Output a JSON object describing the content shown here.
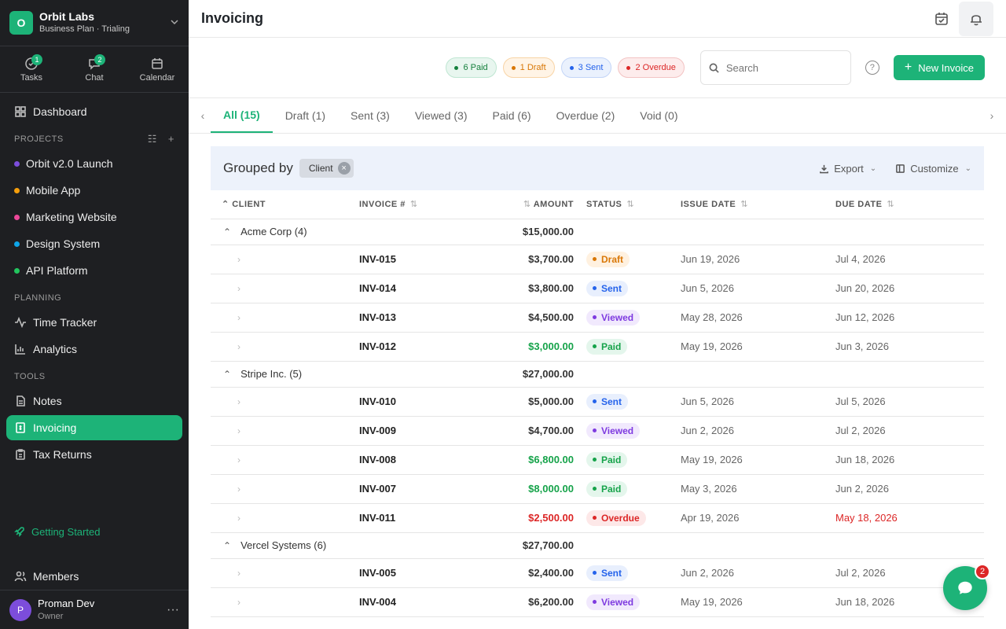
{
  "org": {
    "initial": "O",
    "name": "Orbit Labs",
    "plan": "Business Plan · Trialing"
  },
  "quick": [
    {
      "label": "Tasks",
      "badge": "1"
    },
    {
      "label": "Chat",
      "badge": "2"
    },
    {
      "label": "Calendar"
    }
  ],
  "nav": {
    "dashboard": "Dashboard",
    "projects_label": "PROJECTS",
    "projects": [
      {
        "label": "Orbit v2.0 Launch",
        "color": "#7c4ddb"
      },
      {
        "label": "Mobile App",
        "color": "#f59e0b"
      },
      {
        "label": "Marketing Website",
        "color": "#ec4899"
      },
      {
        "label": "Design System",
        "color": "#0ea5e9"
      },
      {
        "label": "API Platform",
        "color": "#22c55e"
      }
    ],
    "planning_label": "PLANNING",
    "time_tracker": "Time Tracker",
    "analytics": "Analytics",
    "tools_label": "TOOLS",
    "notes": "Notes",
    "invoicing": "Invoicing",
    "tax_returns": "Tax Returns",
    "getting_started": "Getting Started",
    "members": "Members"
  },
  "user": {
    "initial": "P",
    "name": "Proman Dev",
    "role": "Owner",
    "more": "···"
  },
  "header": {
    "title": "Invoicing"
  },
  "summary": {
    "paid": "6 Paid",
    "draft": "1 Draft",
    "sent": "3 Sent",
    "overdue": "2 Overdue"
  },
  "search": {
    "placeholder": "Search"
  },
  "new_invoice": "New Invoice",
  "tabs": [
    "All (15)",
    "Draft (1)",
    "Sent (3)",
    "Viewed (3)",
    "Paid (6)",
    "Overdue (2)",
    "Void (0)"
  ],
  "group": {
    "label": "Grouped by",
    "field": "Client",
    "export": "Export",
    "customize": "Customize"
  },
  "columns": {
    "client": "CLIENT",
    "invoice": "INVOICE #",
    "amount": "AMOUNT",
    "status": "STATUS",
    "issue": "ISSUE DATE",
    "due": "DUE DATE"
  },
  "groups": [
    {
      "name": "Acme Corp (4)",
      "total": "$15,000.00",
      "rows": [
        {
          "inv": "INV-015",
          "amount": "$3,700.00",
          "status": "Draft",
          "kind": "draft",
          "issue": "Jun 19, 2026",
          "due": "Jul 4, 2026"
        },
        {
          "inv": "INV-014",
          "amount": "$3,800.00",
          "status": "Sent",
          "kind": "sent",
          "issue": "Jun 5, 2026",
          "due": "Jun 20, 2026"
        },
        {
          "inv": "INV-013",
          "amount": "$4,500.00",
          "status": "Viewed",
          "kind": "viewed",
          "issue": "May 28, 2026",
          "due": "Jun 12, 2026"
        },
        {
          "inv": "INV-012",
          "amount": "$3,000.00",
          "status": "Paid",
          "kind": "paid",
          "issue": "May 19, 2026",
          "due": "Jun 3, 2026"
        }
      ]
    },
    {
      "name": "Stripe Inc. (5)",
      "total": "$27,000.00",
      "rows": [
        {
          "inv": "INV-010",
          "amount": "$5,000.00",
          "status": "Sent",
          "kind": "sent",
          "issue": "Jun 5, 2026",
          "due": "Jul 5, 2026"
        },
        {
          "inv": "INV-009",
          "amount": "$4,700.00",
          "status": "Viewed",
          "kind": "viewed",
          "issue": "Jun 2, 2026",
          "due": "Jul 2, 2026"
        },
        {
          "inv": "INV-008",
          "amount": "$6,800.00",
          "status": "Paid",
          "kind": "paid",
          "issue": "May 19, 2026",
          "due": "Jun 18, 2026"
        },
        {
          "inv": "INV-007",
          "amount": "$8,000.00",
          "status": "Paid",
          "kind": "paid",
          "issue": "May 3, 2026",
          "due": "Jun 2, 2026"
        },
        {
          "inv": "INV-011",
          "amount": "$2,500.00",
          "status": "Overdue",
          "kind": "overdue",
          "issue": "Apr 19, 2026",
          "due": "May 18, 2026"
        }
      ]
    },
    {
      "name": "Vercel Systems (6)",
      "total": "$27,700.00",
      "rows": [
        {
          "inv": "INV-005",
          "amount": "$2,400.00",
          "status": "Sent",
          "kind": "sent",
          "issue": "Jun 2, 2026",
          "due": "Jul 2, 2026"
        },
        {
          "inv": "INV-004",
          "amount": "$6,200.00",
          "status": "Viewed",
          "kind": "viewed",
          "issue": "May 19, 2026",
          "due": "Jun 18, 2026"
        }
      ]
    }
  ],
  "chat_badge": "2",
  "colors": {
    "accent": "#1db378",
    "sidebar": "#1e1f22",
    "paid": "#16a34a",
    "overdue": "#dc2626",
    "sent": "#2563eb",
    "viewed": "#7e3ae0",
    "draft": "#d97706"
  }
}
